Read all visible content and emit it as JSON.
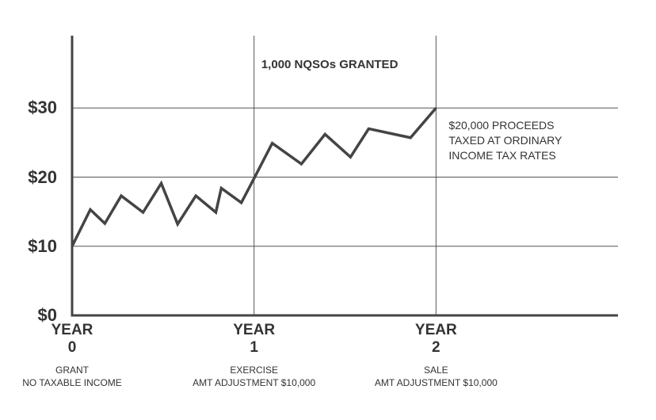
{
  "chart_data": {
    "type": "line",
    "x": [
      0,
      0.1,
      0.18,
      0.27,
      0.39,
      0.49,
      0.58,
      0.68,
      0.79,
      0.82,
      0.93,
      1.0,
      1.1,
      1.26,
      1.39,
      1.53,
      1.63,
      1.86,
      2.0
    ],
    "values": [
      10,
      15.3,
      13.3,
      17.3,
      14.9,
      19.1,
      13.2,
      17.3,
      14.9,
      18.4,
      16.3,
      19.8,
      24.9,
      21.9,
      26.2,
      22.9,
      27.0,
      25.7,
      30.0
    ],
    "color": "#444444",
    "xlim": [
      0,
      3
    ],
    "ylim": [
      0,
      40
    ],
    "xticks": [
      {
        "value": 0,
        "label": "YEAR\n0"
      },
      {
        "value": 1,
        "label": "YEAR\n1"
      },
      {
        "value": 2,
        "label": "YEAR\n2"
      }
    ],
    "xtick_captions": [
      "GRANT\nNO TAXABLE INCOME",
      "EXERCISE\nAMT ADJUSTMENT $10,000",
      "SALE\nAMT ADJUSTMENT $10,000"
    ],
    "yticks": [
      {
        "value": 0,
        "label": "$0"
      },
      {
        "value": 10,
        "label": "$10"
      },
      {
        "value": 20,
        "label": "$20"
      },
      {
        "value": 30,
        "label": "$30"
      }
    ],
    "grid": true,
    "annotations": [
      {
        "text": "1,000 NQSOs GRANTED",
        "x": 1.04,
        "y": 37.3
      },
      {
        "text": "$20,000 PROCEEDS\nTAXED AT ORDINARY\nINCOME TAX RATES",
        "x": 2.07,
        "y": 28.5
      }
    ]
  }
}
